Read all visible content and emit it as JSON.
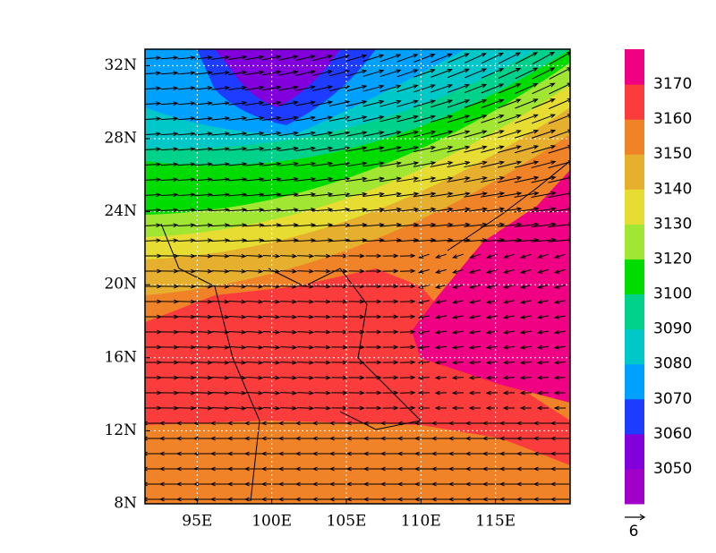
{
  "map": {
    "xlim": [
      91.5,
      120
    ],
    "ylim": [
      8,
      32.9
    ],
    "xticks": [
      {
        "value": 95,
        "label": "95E"
      },
      {
        "value": 100,
        "label": "100E"
      },
      {
        "value": 105,
        "label": "105E"
      },
      {
        "value": 110,
        "label": "110E"
      },
      {
        "value": 115,
        "label": "115E"
      }
    ],
    "yticks": [
      {
        "value": 8,
        "label": "8N"
      },
      {
        "value": 12,
        "label": "12N"
      },
      {
        "value": 16,
        "label": "16N"
      },
      {
        "value": 20,
        "label": "20N"
      },
      {
        "value": 24,
        "label": "24N"
      },
      {
        "value": 28,
        "label": "28N"
      },
      {
        "value": 32,
        "label": "32N"
      }
    ],
    "grid": true,
    "colorbar": {
      "levels": [
        3050,
        3060,
        3070,
        3080,
        3090,
        3100,
        3120,
        3130,
        3140,
        3150,
        3160,
        3170
      ],
      "colors": [
        "#a000c8",
        "#8200dc",
        "#1e3cff",
        "#00a0ff",
        "#00c8c8",
        "#00d28c",
        "#00dc00",
        "#a0e632",
        "#e6dc32",
        "#e6af2d",
        "#f08228",
        "#fa3c3c",
        "#f00082"
      ]
    },
    "reference_vector": 6
  }
}
